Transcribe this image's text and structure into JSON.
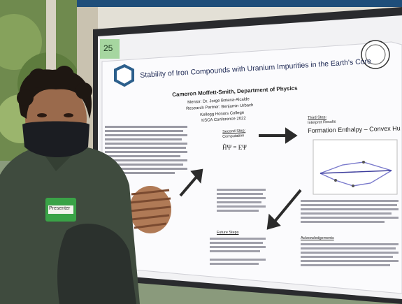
{
  "poster": {
    "board_number": "25",
    "title": "Stability of Iron Compounds with Uranium Impurities in the Earth's Core",
    "author": "Cameron Moffett-Smith, Department of Physics",
    "mentor": "Mentor: Dr. Jorge Botana-Alcalde",
    "partner": "Research Partner: Benjamin Urbach",
    "college": "Kellogg Honors College",
    "conference": "KSCA Conference 2022",
    "step2_label": "Second Step:",
    "step2_sub": "Computation",
    "step3_label": "Third Step:",
    "step3_sub": "Interpret Results",
    "chart_title": "Formation Enthalpy – Convex Hu",
    "equation_1": "ĤΨ = EΨ",
    "future_steps": "Future Steps",
    "acknowledgements": "Acknowledgements"
  },
  "name_tag": {
    "label": "Presenter"
  },
  "colors": {
    "sky_top": "#1f4e7a",
    "board": "#f2f2f4",
    "shirt": "#3f4b3e",
    "mask": "#1b1d22",
    "tag_green": "#3aa347",
    "number_green": "#a6d6a0"
  }
}
